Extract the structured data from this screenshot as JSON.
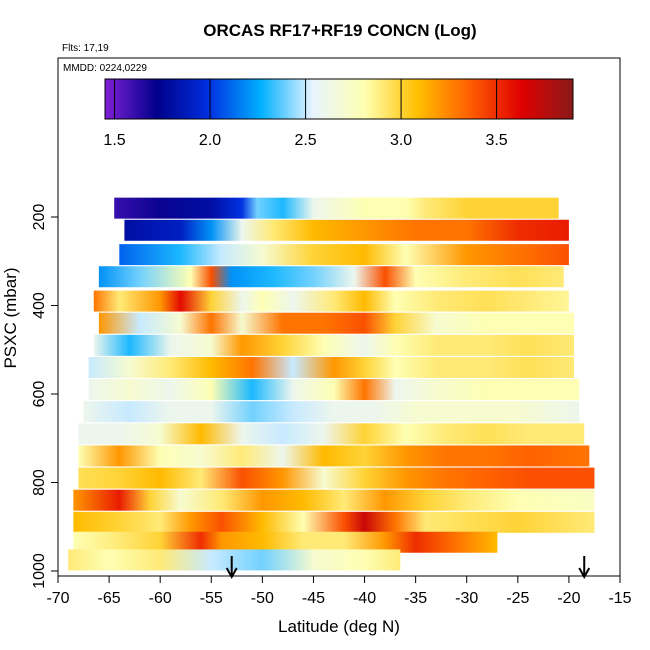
{
  "chart_data": {
    "type": "heatmap",
    "title": "ORCAS RF17+RF19 CONCN (Log)",
    "subtitle_flights": "Flts: 17,19",
    "subtitle_dates": "MMDD: 0224,0229",
    "xlabel": "Latitude (deg N)",
    "ylabel": "PSXC (mbar)",
    "xlim": [
      -70,
      -15
    ],
    "ylim": [
      1000,
      150
    ],
    "x_ticks": [
      -70,
      -65,
      -60,
      -55,
      -50,
      -45,
      -40,
      -35,
      -30,
      -25,
      -20,
      -15
    ],
    "y_ticks": [
      200,
      400,
      600,
      800,
      1000
    ],
    "colorbar": {
      "range": [
        1.45,
        3.9
      ],
      "ticks": [
        1.5,
        2.0,
        2.5,
        3.0,
        3.5
      ],
      "tick_labels": [
        "1.5",
        "2.0",
        "2.5",
        "3.0",
        "3.5"
      ],
      "colors": [
        "#7f1fd6",
        "#00008a",
        "#0030e0",
        "#00b0ff",
        "#e8f4ff",
        "#ffffb0",
        "#ffc000",
        "#ff6000",
        "#e00000",
        "#8b1a1a"
      ]
    },
    "arrows_latitude": [
      -53,
      -18.5
    ],
    "layers": [
      {
        "pressure": 180,
        "lat_start": -64.5,
        "lat_end": -21.0,
        "x_keys": [
          -64.5,
          -60,
          -55,
          -52,
          -50.5,
          -48,
          -45,
          -40,
          -36,
          -34,
          -30,
          -25,
          -21
        ],
        "values": [
          1.6,
          1.7,
          1.8,
          2.0,
          2.4,
          2.3,
          2.6,
          2.8,
          2.8,
          2.9,
          3.0,
          3.0,
          3.0
        ]
      },
      {
        "pressure": 230,
        "lat_start": -63.5,
        "lat_end": -20.0,
        "x_keys": [
          -63.5,
          -58,
          -55,
          -52,
          -49,
          -45,
          -40,
          -35,
          -30,
          -25,
          -20
        ],
        "values": [
          1.8,
          1.9,
          2.2,
          2.6,
          2.9,
          3.1,
          3.2,
          3.3,
          3.3,
          3.5,
          3.55
        ]
      },
      {
        "pressure": 285,
        "lat_start": -64.0,
        "lat_end": -20.0,
        "x_keys": [
          -64,
          -58,
          -54,
          -50,
          -45,
          -40,
          -36,
          -30,
          -25,
          -20
        ],
        "values": [
          2.1,
          2.3,
          2.5,
          2.7,
          3.0,
          3.1,
          2.8,
          3.2,
          3.3,
          3.4
        ]
      },
      {
        "pressure": 335,
        "lat_start": -66.0,
        "lat_end": -20.5,
        "x_keys": [
          -66,
          -62,
          -57,
          -55,
          -53,
          -49,
          -45,
          -41,
          -38,
          -35,
          -30,
          -25,
          -20.5
        ],
        "values": [
          2.2,
          2.4,
          2.8,
          3.4,
          2.2,
          2.3,
          2.4,
          2.6,
          3.4,
          2.8,
          2.9,
          2.95,
          2.9
        ]
      },
      {
        "pressure": 390,
        "lat_start": -66.5,
        "lat_end": -20.0,
        "x_keys": [
          -66.5,
          -64,
          -60,
          -58,
          -55,
          -52,
          -50,
          -47,
          -43,
          -40,
          -37,
          -33,
          -28,
          -24,
          -20
        ],
        "values": [
          3.3,
          2.9,
          3.2,
          3.6,
          3.0,
          2.6,
          2.8,
          2.6,
          2.9,
          3.1,
          2.8,
          2.9,
          2.95,
          2.9,
          2.85
        ]
      },
      {
        "pressure": 440,
        "lat_start": -66.0,
        "lat_end": -19.5,
        "x_keys": [
          -66,
          -62,
          -58,
          -55,
          -52,
          -48,
          -44,
          -40,
          -37,
          -33,
          -28,
          -24,
          -19.5
        ],
        "values": [
          3.2,
          2.5,
          2.7,
          3.3,
          2.7,
          3.3,
          3.3,
          3.4,
          3.0,
          2.7,
          2.8,
          2.8,
          2.8
        ]
      },
      {
        "pressure": 490,
        "lat_start": -66.5,
        "lat_end": -19.5,
        "x_keys": [
          -66.5,
          -63,
          -59,
          -55,
          -52,
          -48,
          -44,
          -40,
          -37,
          -33,
          -28,
          -24,
          -19.5
        ],
        "values": [
          2.6,
          2.3,
          2.6,
          2.7,
          3.2,
          3.0,
          2.8,
          2.6,
          2.8,
          2.9,
          2.9,
          2.95,
          2.9
        ]
      },
      {
        "pressure": 540,
        "lat_start": -67.0,
        "lat_end": -19.5,
        "x_keys": [
          -67,
          -63,
          -59,
          -55,
          -51,
          -47,
          -43,
          -40,
          -37,
          -33,
          -28,
          -24,
          -19.5
        ],
        "values": [
          2.5,
          2.7,
          2.9,
          3.1,
          3.3,
          2.5,
          3.2,
          3.0,
          2.8,
          2.9,
          2.9,
          2.95,
          2.9
        ]
      },
      {
        "pressure": 590,
        "lat_start": -67.0,
        "lat_end": -19.0,
        "x_keys": [
          -67,
          -63,
          -59,
          -55,
          -51,
          -47,
          -43,
          -40,
          -37,
          -33,
          -28,
          -24,
          -19
        ],
        "values": [
          2.6,
          2.7,
          2.6,
          2.8,
          2.3,
          2.6,
          2.8,
          3.3,
          2.6,
          2.7,
          2.8,
          2.8,
          2.8
        ]
      },
      {
        "pressure": 640,
        "lat_start": -67.5,
        "lat_end": -19.0,
        "x_keys": [
          -67.5,
          -63,
          -59,
          -55,
          -51,
          -47,
          -43,
          -39,
          -35,
          -30,
          -25,
          -19
        ],
        "values": [
          2.6,
          2.5,
          2.6,
          2.6,
          2.4,
          2.5,
          2.6,
          2.6,
          2.7,
          2.7,
          2.7,
          2.6
        ]
      },
      {
        "pressure": 690,
        "lat_start": -68.0,
        "lat_end": -18.5,
        "x_keys": [
          -68,
          -64,
          -60,
          -56,
          -52,
          -48,
          -44,
          -40,
          -36,
          -32,
          -28,
          -24,
          -18.5
        ],
        "values": [
          2.6,
          2.6,
          2.7,
          3.1,
          2.6,
          2.5,
          2.6,
          3.0,
          2.8,
          2.9,
          2.95,
          2.9,
          2.9
        ]
      },
      {
        "pressure": 740,
        "lat_start": -68.0,
        "lat_end": -18.0,
        "x_keys": [
          -68,
          -64,
          -60,
          -56,
          -52,
          -48,
          -44,
          -40,
          -36,
          -32,
          -28,
          -24,
          -18
        ],
        "values": [
          2.8,
          3.2,
          2.8,
          2.7,
          2.9,
          2.6,
          3.1,
          3.0,
          3.2,
          3.3,
          3.3,
          3.35,
          3.3
        ]
      },
      {
        "pressure": 790,
        "lat_start": -68.0,
        "lat_end": -17.5,
        "x_keys": [
          -68,
          -64,
          -60,
          -56,
          -52,
          -48,
          -44,
          -40,
          -36,
          -32,
          -28,
          -24,
          -17.5
        ],
        "values": [
          2.95,
          3.0,
          3.1,
          2.9,
          3.4,
          3.2,
          2.7,
          3.0,
          3.2,
          3.3,
          3.35,
          3.4,
          3.4
        ]
      },
      {
        "pressure": 840,
        "lat_start": -68.5,
        "lat_end": -17.5,
        "x_keys": [
          -68.5,
          -64,
          -61,
          -58,
          -54,
          -50,
          -46,
          -42,
          -38,
          -34,
          -30,
          -25,
          -17.5
        ],
        "values": [
          3.2,
          3.55,
          3.0,
          2.7,
          2.9,
          3.2,
          3.1,
          2.9,
          3.2,
          3.0,
          2.9,
          2.8,
          2.75
        ]
      },
      {
        "pressure": 890,
        "lat_start": -68.5,
        "lat_end": -17.5,
        "x_keys": [
          -68.5,
          -64,
          -60,
          -57,
          -54,
          -50,
          -46,
          -42,
          -40,
          -37,
          -34,
          -30,
          -25,
          -17.5
        ],
        "values": [
          3.1,
          3.0,
          2.9,
          3.2,
          3.4,
          3.1,
          2.8,
          3.4,
          3.7,
          3.3,
          2.9,
          2.95,
          3.0,
          2.9
        ]
      },
      {
        "pressure": 935,
        "lat_start": -68.5,
        "lat_end": -27.0,
        "x_keys": [
          -68.5,
          -64,
          -60,
          -56,
          -54,
          -50,
          -46,
          -42,
          -38,
          -35,
          -31,
          -27
        ],
        "values": [
          2.8,
          2.9,
          3.0,
          3.5,
          3.2,
          3.1,
          2.9,
          2.9,
          3.2,
          3.5,
          3.3,
          3.1
        ]
      },
      {
        "pressure": 975,
        "lat_start": -69.0,
        "lat_end": -36.5,
        "x_keys": [
          -69,
          -65,
          -60,
          -55,
          -50,
          -45,
          -40,
          -36.5
        ],
        "values": [
          2.9,
          2.8,
          2.9,
          2.5,
          2.4,
          2.7,
          2.8,
          2.9
        ]
      }
    ],
    "grid": false,
    "legend": "colorbar top"
  }
}
